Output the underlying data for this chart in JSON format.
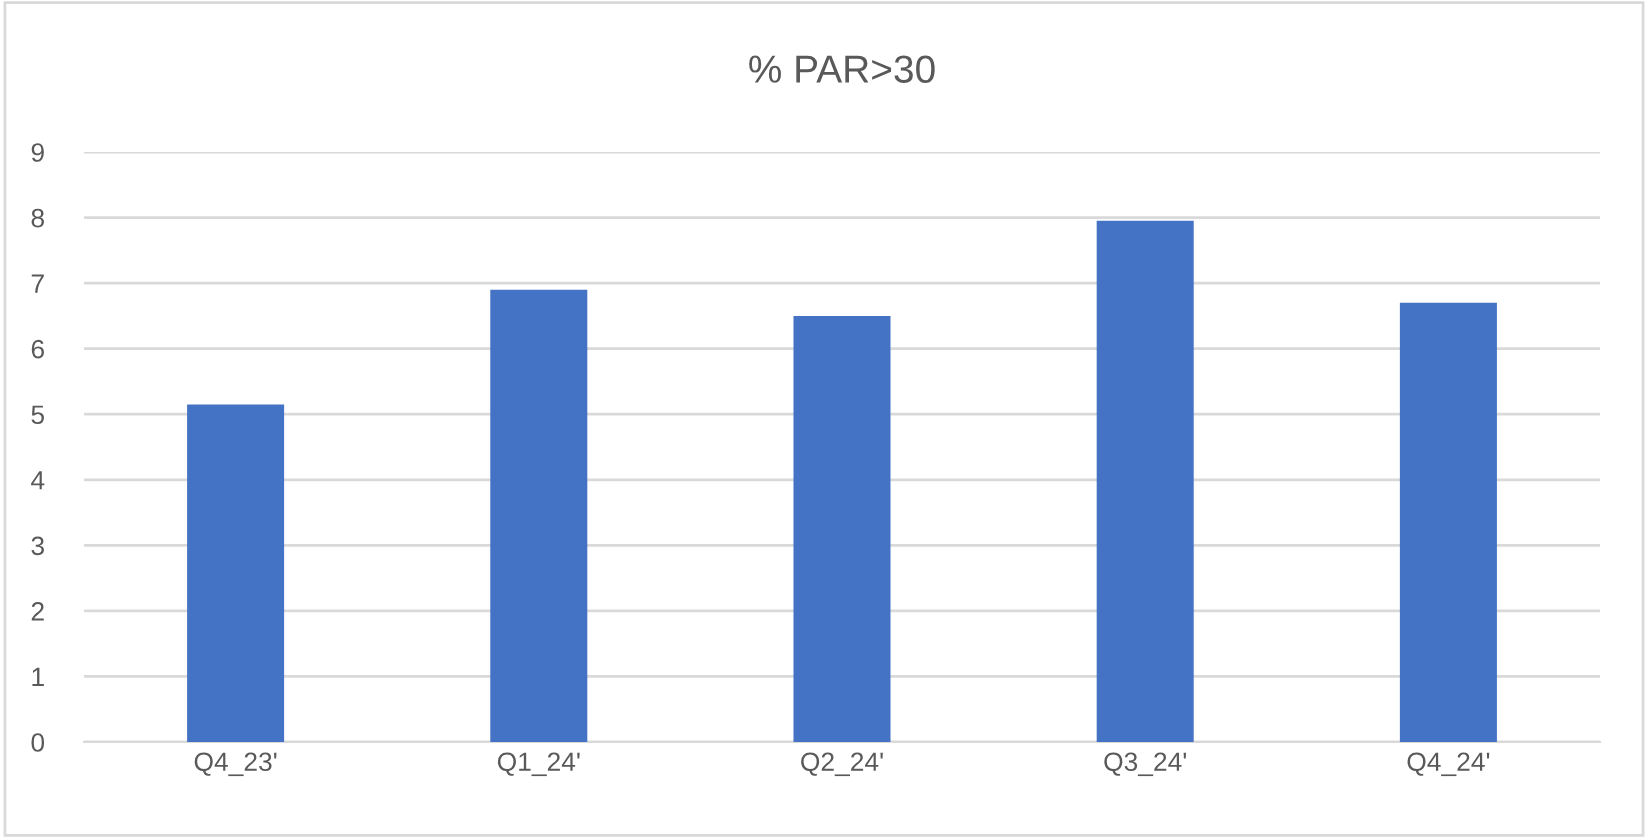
{
  "chart_data": {
    "type": "bar",
    "title": "% PAR>30",
    "categories": [
      "Q4_23'",
      "Q1_24'",
      "Q2_24'",
      "Q3_24'",
      "Q4_24'"
    ],
    "values": [
      5.15,
      6.9,
      6.5,
      7.95,
      6.7
    ],
    "color": "#4472c4",
    "ylim": [
      0,
      9
    ],
    "yticks": [
      0,
      1,
      2,
      3,
      4,
      5,
      6,
      7,
      8,
      9
    ],
    "grid": "y"
  }
}
